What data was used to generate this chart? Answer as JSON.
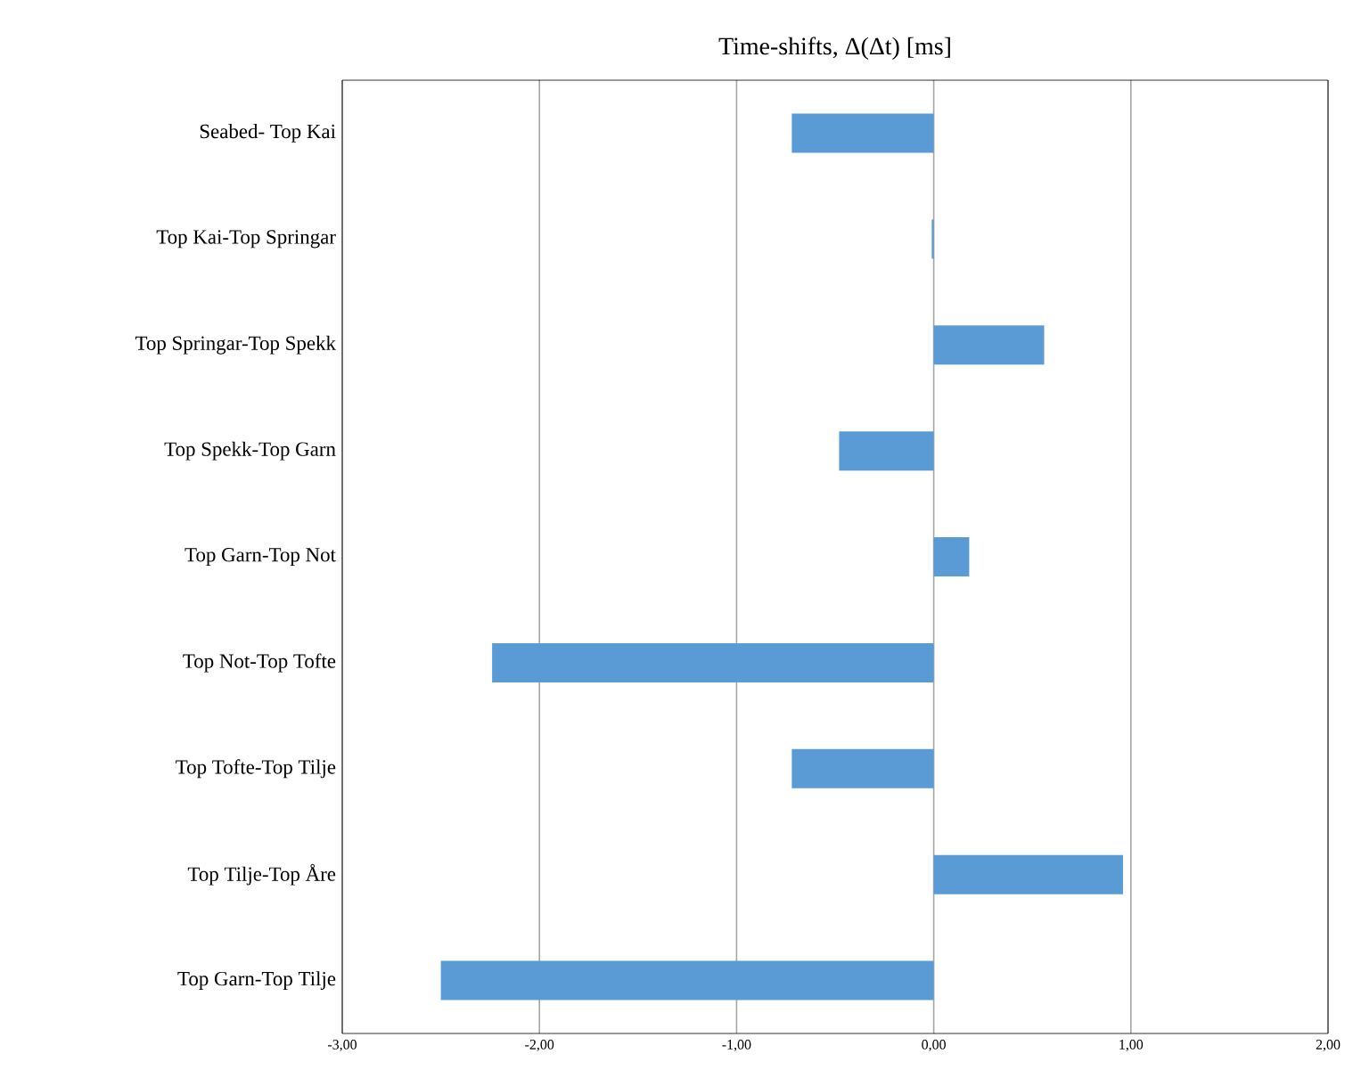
{
  "chart_data": {
    "type": "bar",
    "orientation": "horizontal",
    "title": "Time-shifts, Δ(Δt) [ms]",
    "categories": [
      "Seabed- Top Kai",
      "Top Kai-Top Springar",
      "Top Springar-Top Spekk",
      "Top Spekk-Top Garn",
      "Top Garn-Top Not",
      "Top Not-Top Tofte",
      "Top Tofte-Top Tilje",
      "Top Tilje-Top Åre",
      "Top Garn-Top Tilje"
    ],
    "values": [
      -0.72,
      -0.01,
      0.56,
      -0.48,
      0.18,
      -2.24,
      -0.72,
      0.96,
      -2.5
    ],
    "color": "#5b9bd5",
    "xlim": [
      -3,
      2
    ],
    "xticks": [
      {
        "value": -3,
        "label": "-3,00"
      },
      {
        "value": -2,
        "label": "-2,00"
      },
      {
        "value": -1,
        "label": "-1,00"
      },
      {
        "value": 0,
        "label": "0,00"
      },
      {
        "value": 1,
        "label": "1,00"
      },
      {
        "value": 2,
        "label": "2,00"
      }
    ],
    "grid": "x"
  }
}
